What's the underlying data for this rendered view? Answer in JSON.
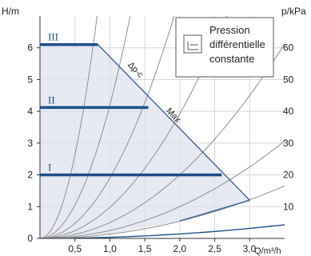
{
  "chart_data": {
    "type": "line",
    "ylabel_left": "H/m",
    "ylabel_right": "p/kPa",
    "xlabel": "Q/m³/h",
    "xlim": [
      0,
      3.5
    ],
    "ylim_left": [
      0,
      7
    ],
    "ylim_right": [
      0,
      70
    ],
    "x_ticks": [
      0.5,
      1.0,
      1.5,
      2.0,
      2.5,
      3.0
    ],
    "x_tick_labels": [
      "0,5",
      "1,0",
      "1,5",
      "2,0",
      "2,5",
      "3,0"
    ],
    "y_ticks": [
      0,
      1,
      2,
      3,
      4,
      5,
      6
    ],
    "y_tick_labels": [
      "0",
      "1",
      "2",
      "3",
      "4",
      "5",
      "6"
    ],
    "y2_ticks": [
      10,
      20,
      30,
      40,
      50,
      60
    ],
    "y2_tick_labels": [
      "10",
      "20",
      "30",
      "40",
      "50",
      "60"
    ],
    "grid": true,
    "legend": {
      "position": "top-right",
      "text": [
        "Pression",
        "différentielle",
        "constante"
      ]
    },
    "envelope": {
      "x": [
        0,
        0.83,
        3.0,
        3.0,
        2.0,
        1.0,
        0
      ],
      "y": [
        6.1,
        6.1,
        1.2,
        1.2,
        0.55,
        0.14,
        0
      ]
    },
    "series": [
      {
        "name": "III",
        "x": [
          0,
          0.83
        ],
        "y": [
          6.1,
          6.1
        ]
      },
      {
        "name": "II",
        "x": [
          0,
          1.55
        ],
        "y": [
          4.12,
          4.12
        ]
      },
      {
        "name": "I",
        "x": [
          0,
          2.6
        ],
        "y": [
          2.0,
          2.0
        ]
      },
      {
        "name": "Δp-c",
        "x": [
          0.83,
          3.0
        ],
        "y": [
          6.1,
          1.2
        ]
      }
    ],
    "annotations": [
      {
        "text": "Δp-c",
        "x": 1.25,
        "y": 5.45
      },
      {
        "text": "Max",
        "x": 1.8,
        "y": 4.0
      }
    ],
    "system_curves_k": [
      0.035,
      0.135,
      0.25,
      0.5,
      0.98,
      1.9,
      4.2,
      10.5
    ]
  }
}
